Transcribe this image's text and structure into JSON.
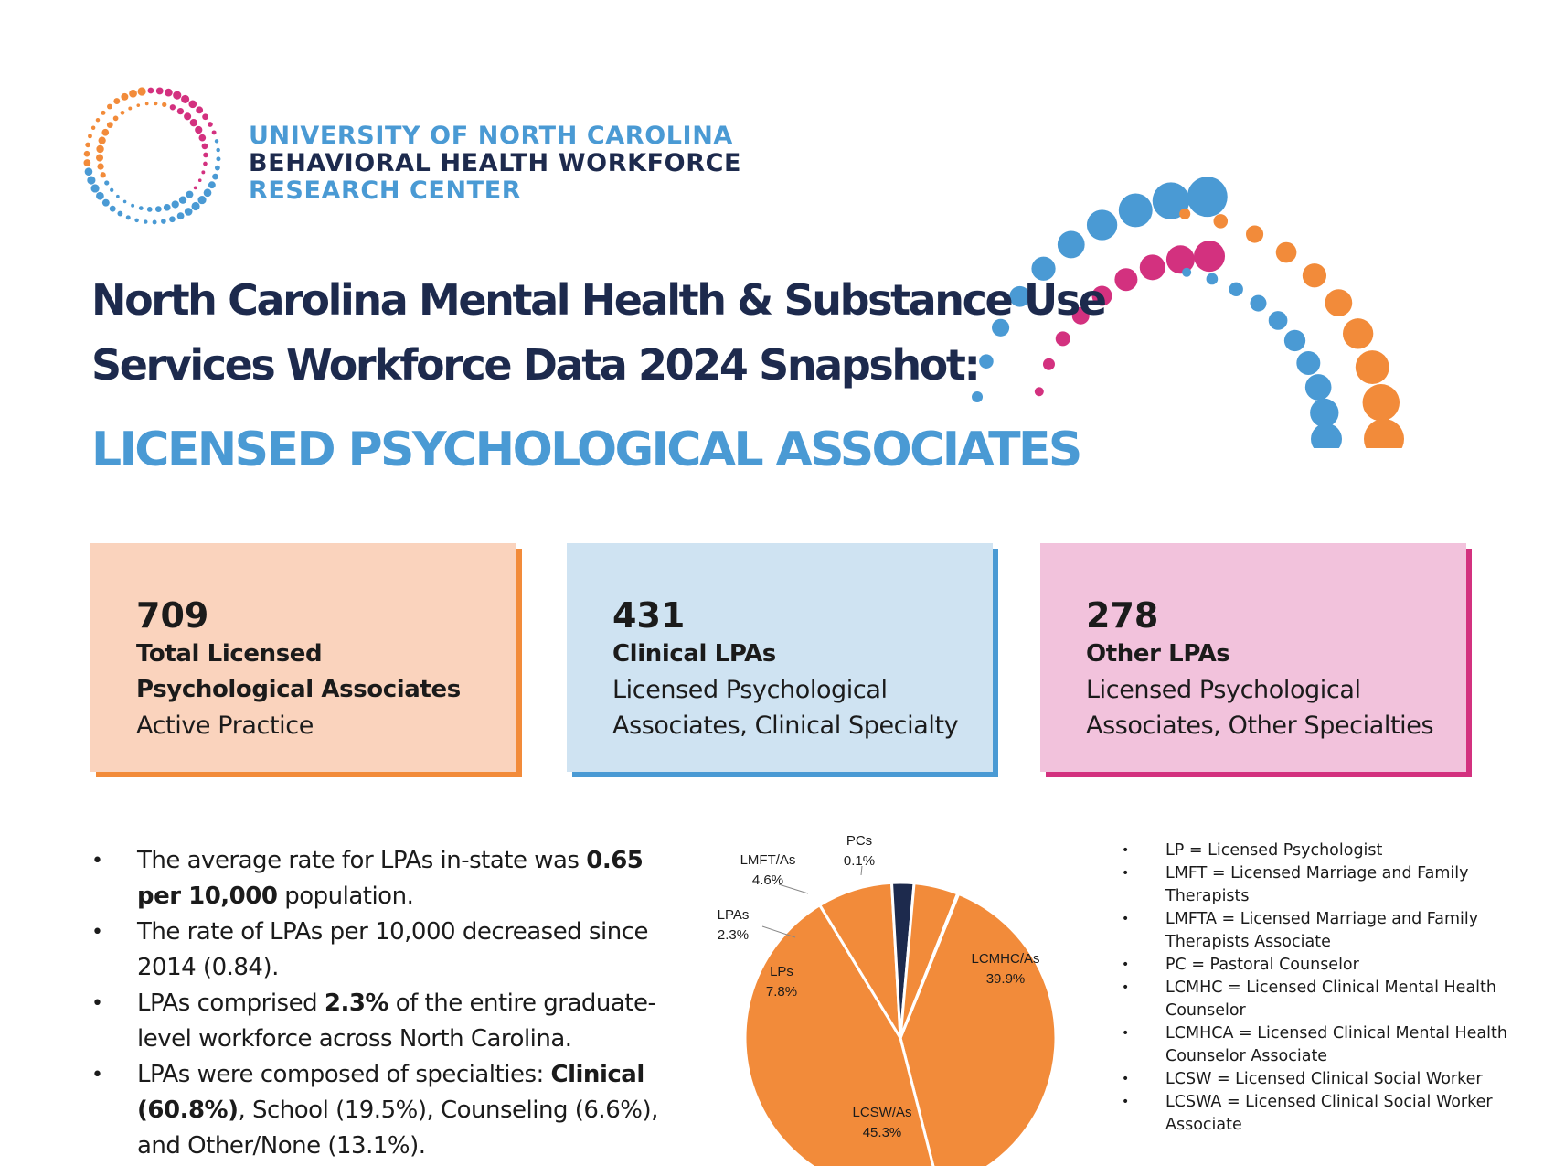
{
  "header": {
    "org_line1": "UNIVERSITY OF NORTH CAROLINA",
    "org_line2": "BEHAVIORAL HEALTH WORKFORCE",
    "org_line3": "RESEARCH CENTER",
    "title_line1": "North Carolina Mental Health & Substance Use",
    "title_line2": "Services Workforce Data 2024 Snapshot:",
    "subtitle": "LICENSED PSYCHOLOGICAL ASSOCIATES"
  },
  "colors": {
    "navy": "#1d2a4d",
    "blue": "#4a9ad4",
    "orange": "#f28b3a",
    "pink": "#d3317f"
  },
  "cards": [
    {
      "number": "709",
      "label_line1": "Total Licensed",
      "label_line2": "Psychological Associates",
      "desc_line1": "Active Practice"
    },
    {
      "number": "431",
      "label_line1": "Clinical LPAs",
      "desc_line1": "Licensed Psychological",
      "desc_line2": "Associates, Clinical Specialty"
    },
    {
      "number": "278",
      "label_line1": "Other LPAs",
      "desc_line1": "Licensed Psychological",
      "desc_line2": "Associates, Other Specialties"
    }
  ],
  "bullets": [
    {
      "pre": "The average rate for LPAs in-state was ",
      "bold": "0.65 per 10,000",
      "post": " population."
    },
    {
      "pre": "The rate of LPAs per 10,000 decreased since 2014 (0.84).",
      "bold": "",
      "post": ""
    },
    {
      "pre": "LPAs comprised ",
      "bold": "2.3%",
      "post": " of the entire graduate-level workforce across North Carolina."
    },
    {
      "pre": "LPAs were composed of specialties: ",
      "bold": "Clinical (60.8%)",
      "post": ", School (19.5%), Counseling (6.6%), and Other/None (13.1%)."
    }
  ],
  "chart_data": {
    "type": "pie",
    "labels": [
      "LCMHC/As",
      "LCSW/As",
      "LPs",
      "LPAs",
      "LMFT/As",
      "PCs"
    ],
    "values": [
      39.9,
      45.3,
      7.8,
      2.3,
      4.6,
      0.1
    ],
    "value_labels": [
      "39.9%",
      "45.3%",
      "7.8%",
      "2.3%",
      "4.6%",
      "0.1%"
    ],
    "colors": [
      "#f28b3a",
      "#f28b3a",
      "#f28b3a",
      "#1d2a4d",
      "#f28b3a",
      "#f28b3a"
    ]
  },
  "glossary": [
    "LP = Licensed Psychologist",
    "LMFT = Licensed Marriage and Family Therapists",
    "LMFTA = Licensed Marriage and Family Therapists Associate",
    "PC = Pastoral Counselor",
    "LCMHC = Licensed Clinical Mental Health Counselor",
    "LCMHCA = Licensed Clinical Mental Health Counselor Associate",
    "LCSW = Licensed Clinical Social Worker",
    "LCSWA = Licensed Clinical Social Worker Associate"
  ]
}
